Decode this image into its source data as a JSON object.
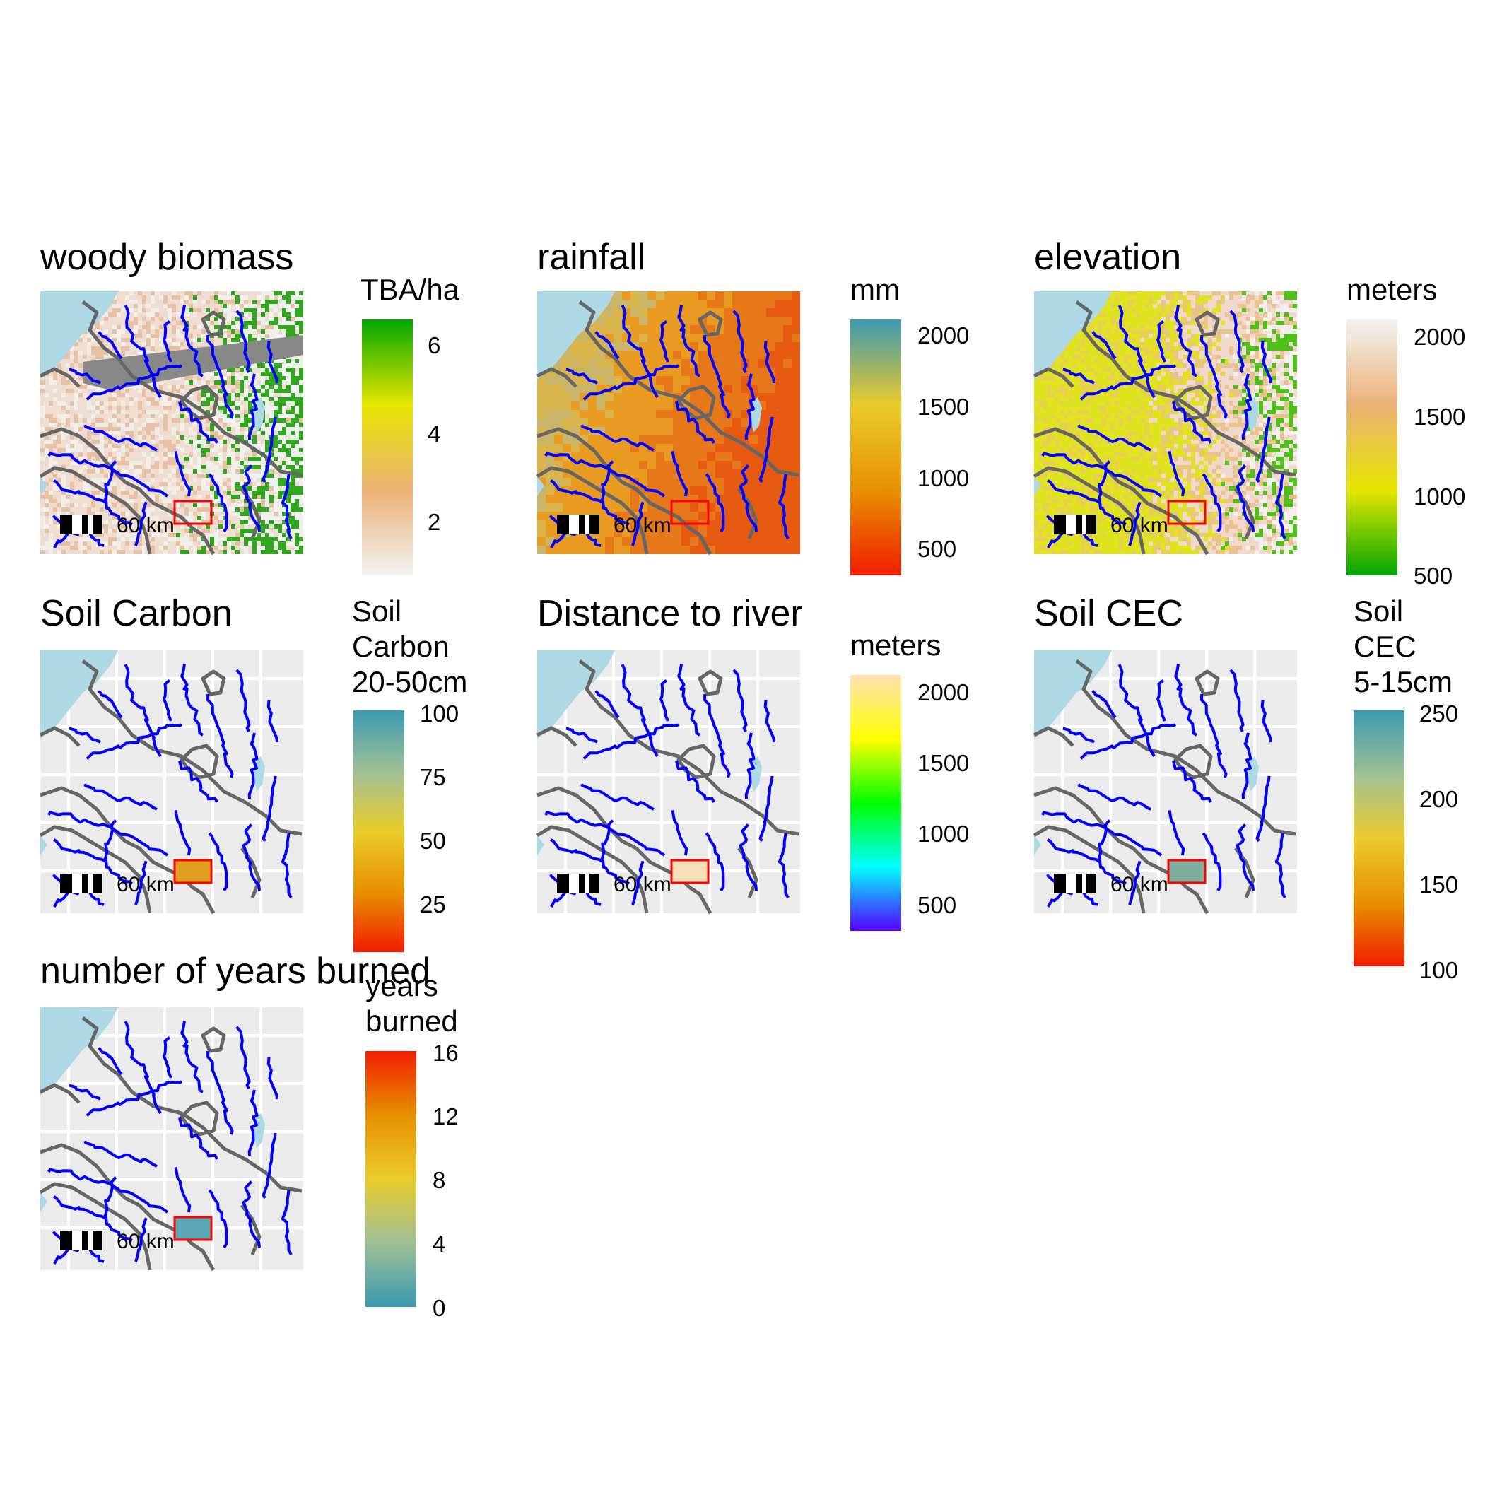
{
  "scale_label": "60 km",
  "colors": {
    "water": "#add8e6",
    "rivers": "#0000ff",
    "borders": "#666666",
    "study_area": "#ff0000",
    "background": "#ebebeb"
  },
  "panels": [
    {
      "id": "woody-biomass",
      "title": "woody biomass",
      "legend_title": [
        "TBA/ha"
      ],
      "ticks": [
        "6",
        "4",
        "2"
      ],
      "colors": [
        "#00a600",
        "#e6e600",
        "#ecb176",
        "#f2f2f2"
      ],
      "fill": "biomass"
    },
    {
      "id": "rainfall",
      "title": "rainfall",
      "legend_title": [
        "mm"
      ],
      "ticks": [
        "2000",
        "1500",
        "1000",
        "500"
      ],
      "colors": [
        "#3b99b1",
        "#eacb2b",
        "#e79000",
        "#f11e00"
      ],
      "fill": "rainfall"
    },
    {
      "id": "elevation",
      "title": "elevation",
      "legend_title": [
        "meters"
      ],
      "ticks": [
        "2000",
        "1500",
        "1000",
        "500"
      ],
      "colors": [
        "#f2f2f2",
        "#ecb176",
        "#e6e600",
        "#00a600"
      ],
      "fill": "elevation"
    },
    {
      "id": "soil-carbon",
      "title": "Soil Carbon",
      "legend_title": [
        "Soil",
        "Carbon",
        "20-50cm"
      ],
      "ticks": [
        "100",
        "75",
        "50",
        "25"
      ],
      "colors": [
        "#3b99b1",
        "#9fc095",
        "#eacb2b",
        "#e79000",
        "#f11e00"
      ],
      "fill": "grey"
    },
    {
      "id": "distance-to-river",
      "title": "Distance to river",
      "legend_title": [
        "meters"
      ],
      "ticks": [
        "2000",
        "1500",
        "1000",
        "500"
      ],
      "colors": [
        "#ffe0b3",
        "#ffff00",
        "#00ff00",
        "#00ffff",
        "#5500ff"
      ],
      "fill": "grey"
    },
    {
      "id": "soil-cec",
      "title": "Soil CEC",
      "legend_title": [
        "Soil",
        "CEC",
        "5-15cm"
      ],
      "ticks": [
        "250",
        "200",
        "150",
        "100"
      ],
      "colors": [
        "#3b99b1",
        "#9fc095",
        "#eacb2b",
        "#e79000",
        "#f11e00"
      ],
      "fill": "grey"
    },
    {
      "id": "years-burned",
      "title": "number of years burned",
      "legend_title": [
        "years",
        "burned"
      ],
      "ticks": [
        "16",
        "12",
        "8",
        "4",
        "0"
      ],
      "colors": [
        "#f11e00",
        "#e79000",
        "#eacb2b",
        "#9fc095",
        "#3b99b1"
      ],
      "fill": "grey"
    }
  ]
}
